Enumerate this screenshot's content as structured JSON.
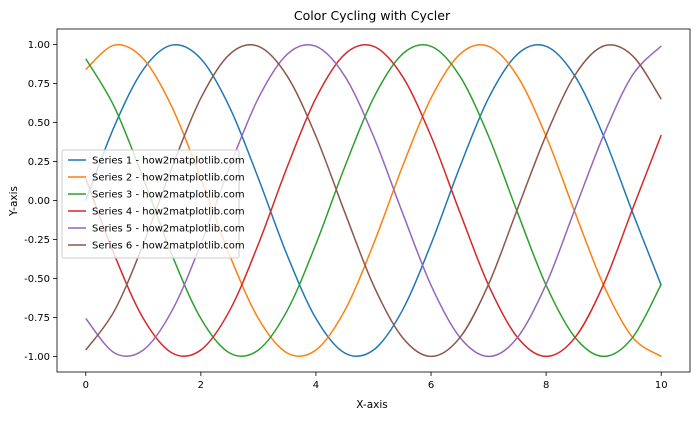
{
  "chart_data": {
    "type": "line",
    "title": "Color Cycling with Cycler",
    "xlabel": "X-axis",
    "ylabel": "Y-axis",
    "xlim": [
      -0.5,
      10.5
    ],
    "ylim": [
      -1.1,
      1.1
    ],
    "xticks": [
      0,
      2,
      4,
      6,
      8,
      10
    ],
    "xtick_labels": [
      "0",
      "2",
      "4",
      "6",
      "8",
      "10"
    ],
    "yticks": [
      -1.0,
      -0.75,
      -0.5,
      -0.25,
      0.0,
      0.25,
      0.5,
      0.75,
      1.0
    ],
    "ytick_labels": [
      "-1.00",
      "-0.75",
      "-0.50",
      "-0.25",
      "0.00",
      "0.25",
      "0.50",
      "0.75",
      "1.00"
    ],
    "grid": false,
    "legend_position": "center-left",
    "x": [
      0.0,
      0.5,
      1.0,
      1.5,
      2.0,
      2.5,
      3.0,
      3.5,
      4.0,
      4.5,
      5.0,
      5.5,
      6.0,
      6.5,
      7.0,
      7.5,
      8.0,
      8.5,
      9.0,
      9.5,
      10.0
    ],
    "series": [
      {
        "name": "Series 1 - how2matplotlib.com",
        "color": "#1f77b4",
        "values": [
          0.0,
          0.479,
          0.841,
          0.997,
          0.909,
          0.598,
          0.141,
          -0.351,
          -0.757,
          -0.978,
          -0.959,
          -0.706,
          -0.279,
          0.215,
          0.657,
          0.938,
          0.989,
          0.798,
          0.412,
          -0.075,
          -0.544
        ]
      },
      {
        "name": "Series 2 - how2matplotlib.com",
        "color": "#ff7f0e",
        "values": [
          0.841,
          0.997,
          0.909,
          0.598,
          0.141,
          -0.351,
          -0.757,
          -0.978,
          -0.959,
          -0.706,
          -0.279,
          0.215,
          0.657,
          0.938,
          0.989,
          0.798,
          0.412,
          -0.075,
          -0.544,
          -0.877,
          -1.0
        ]
      },
      {
        "name": "Series 3 - how2matplotlib.com",
        "color": "#2ca02c",
        "values": [
          0.909,
          0.598,
          0.141,
          -0.351,
          -0.757,
          -0.978,
          -0.959,
          -0.706,
          -0.279,
          0.215,
          0.657,
          0.938,
          0.989,
          0.798,
          0.412,
          -0.075,
          -0.544,
          -0.877,
          -1.0,
          -0.88,
          -0.537
        ]
      },
      {
        "name": "Series 4 - how2matplotlib.com",
        "color": "#d62728",
        "values": [
          0.141,
          -0.351,
          -0.757,
          -0.978,
          -0.959,
          -0.706,
          -0.279,
          0.215,
          0.657,
          0.938,
          0.989,
          0.798,
          0.412,
          -0.075,
          -0.544,
          -0.877,
          -1.0,
          -0.88,
          -0.537,
          -0.056,
          0.42
        ]
      },
      {
        "name": "Series 5 - how2matplotlib.com",
        "color": "#9467bd",
        "values": [
          -0.757,
          -0.978,
          -0.959,
          -0.706,
          -0.279,
          0.215,
          0.657,
          0.938,
          0.989,
          0.798,
          0.412,
          -0.075,
          -0.544,
          -0.877,
          -1.0,
          -0.88,
          -0.537,
          -0.056,
          0.42,
          0.804,
          0.991
        ]
      },
      {
        "name": "Series 6 - how2matplotlib.com",
        "color": "#8c564b",
        "values": [
          -0.959,
          -0.706,
          -0.279,
          0.215,
          0.657,
          0.938,
          0.989,
          0.798,
          0.412,
          -0.075,
          -0.544,
          -0.877,
          -1.0,
          -0.88,
          -0.537,
          -0.056,
          0.42,
          0.804,
          0.991,
          0.929,
          0.65
        ]
      }
    ]
  }
}
